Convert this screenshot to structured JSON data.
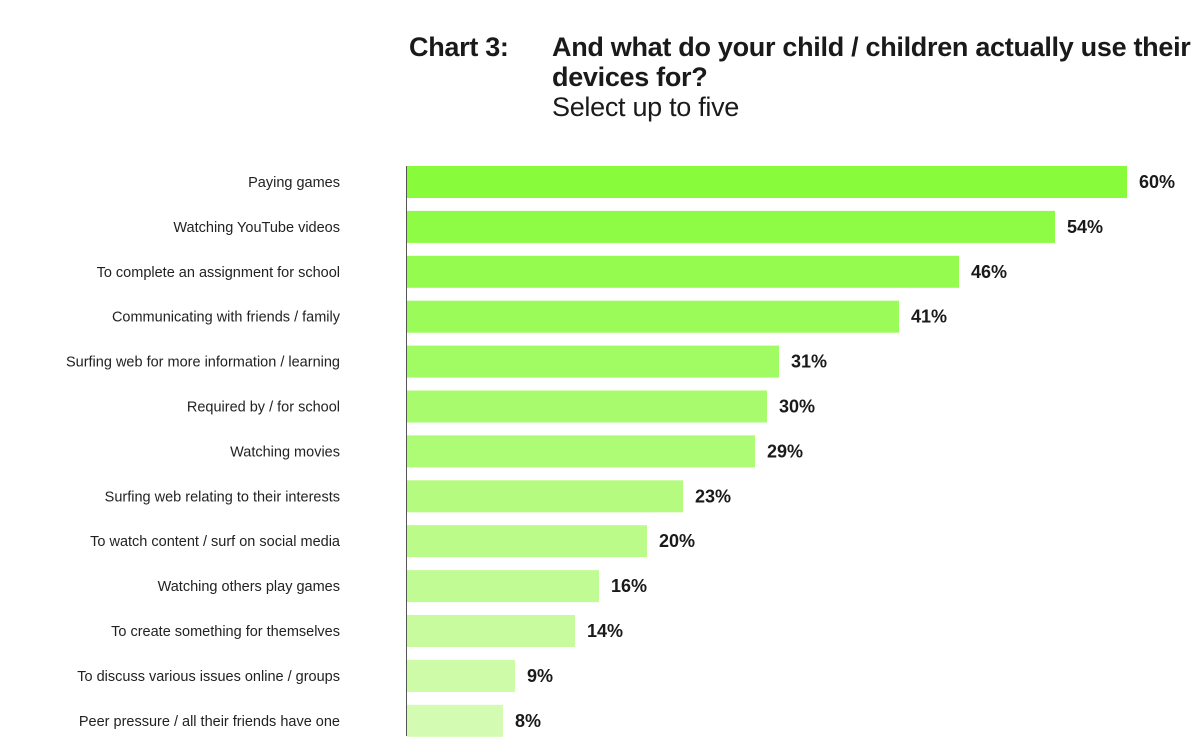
{
  "chart_data": {
    "type": "bar",
    "orientation": "horizontal",
    "title_label": "Chart 3:",
    "title": "And what do your child / children actually use their devices for?",
    "subtitle": "Select up to five",
    "categories": [
      "Paying games",
      "Watching YouTube videos",
      "To complete an assignment for school",
      "Communicating with friends / family",
      "Surfing web for more information / learning",
      "Required by / for school",
      "Watching movies",
      "Surfing web relating to their interests",
      "To watch content / surf on social media",
      "Watching others play games",
      "To create something for themselves",
      "To discuss various issues online / groups",
      "Peer pressure / all their friends have one"
    ],
    "values": [
      60,
      54,
      46,
      41,
      31,
      30,
      29,
      23,
      20,
      16,
      14,
      9,
      8
    ],
    "value_labels": [
      "60%",
      "54%",
      "46%",
      "41%",
      "31%",
      "30%",
      "29%",
      "23%",
      "20%",
      "16%",
      "14%",
      "9%",
      "8%"
    ],
    "unit": "%",
    "xlim": [
      0,
      60
    ],
    "grid": false,
    "legend": "none",
    "bar_color_start": "#88fb3a",
    "bar_color_end": "#d3fbb2"
  }
}
